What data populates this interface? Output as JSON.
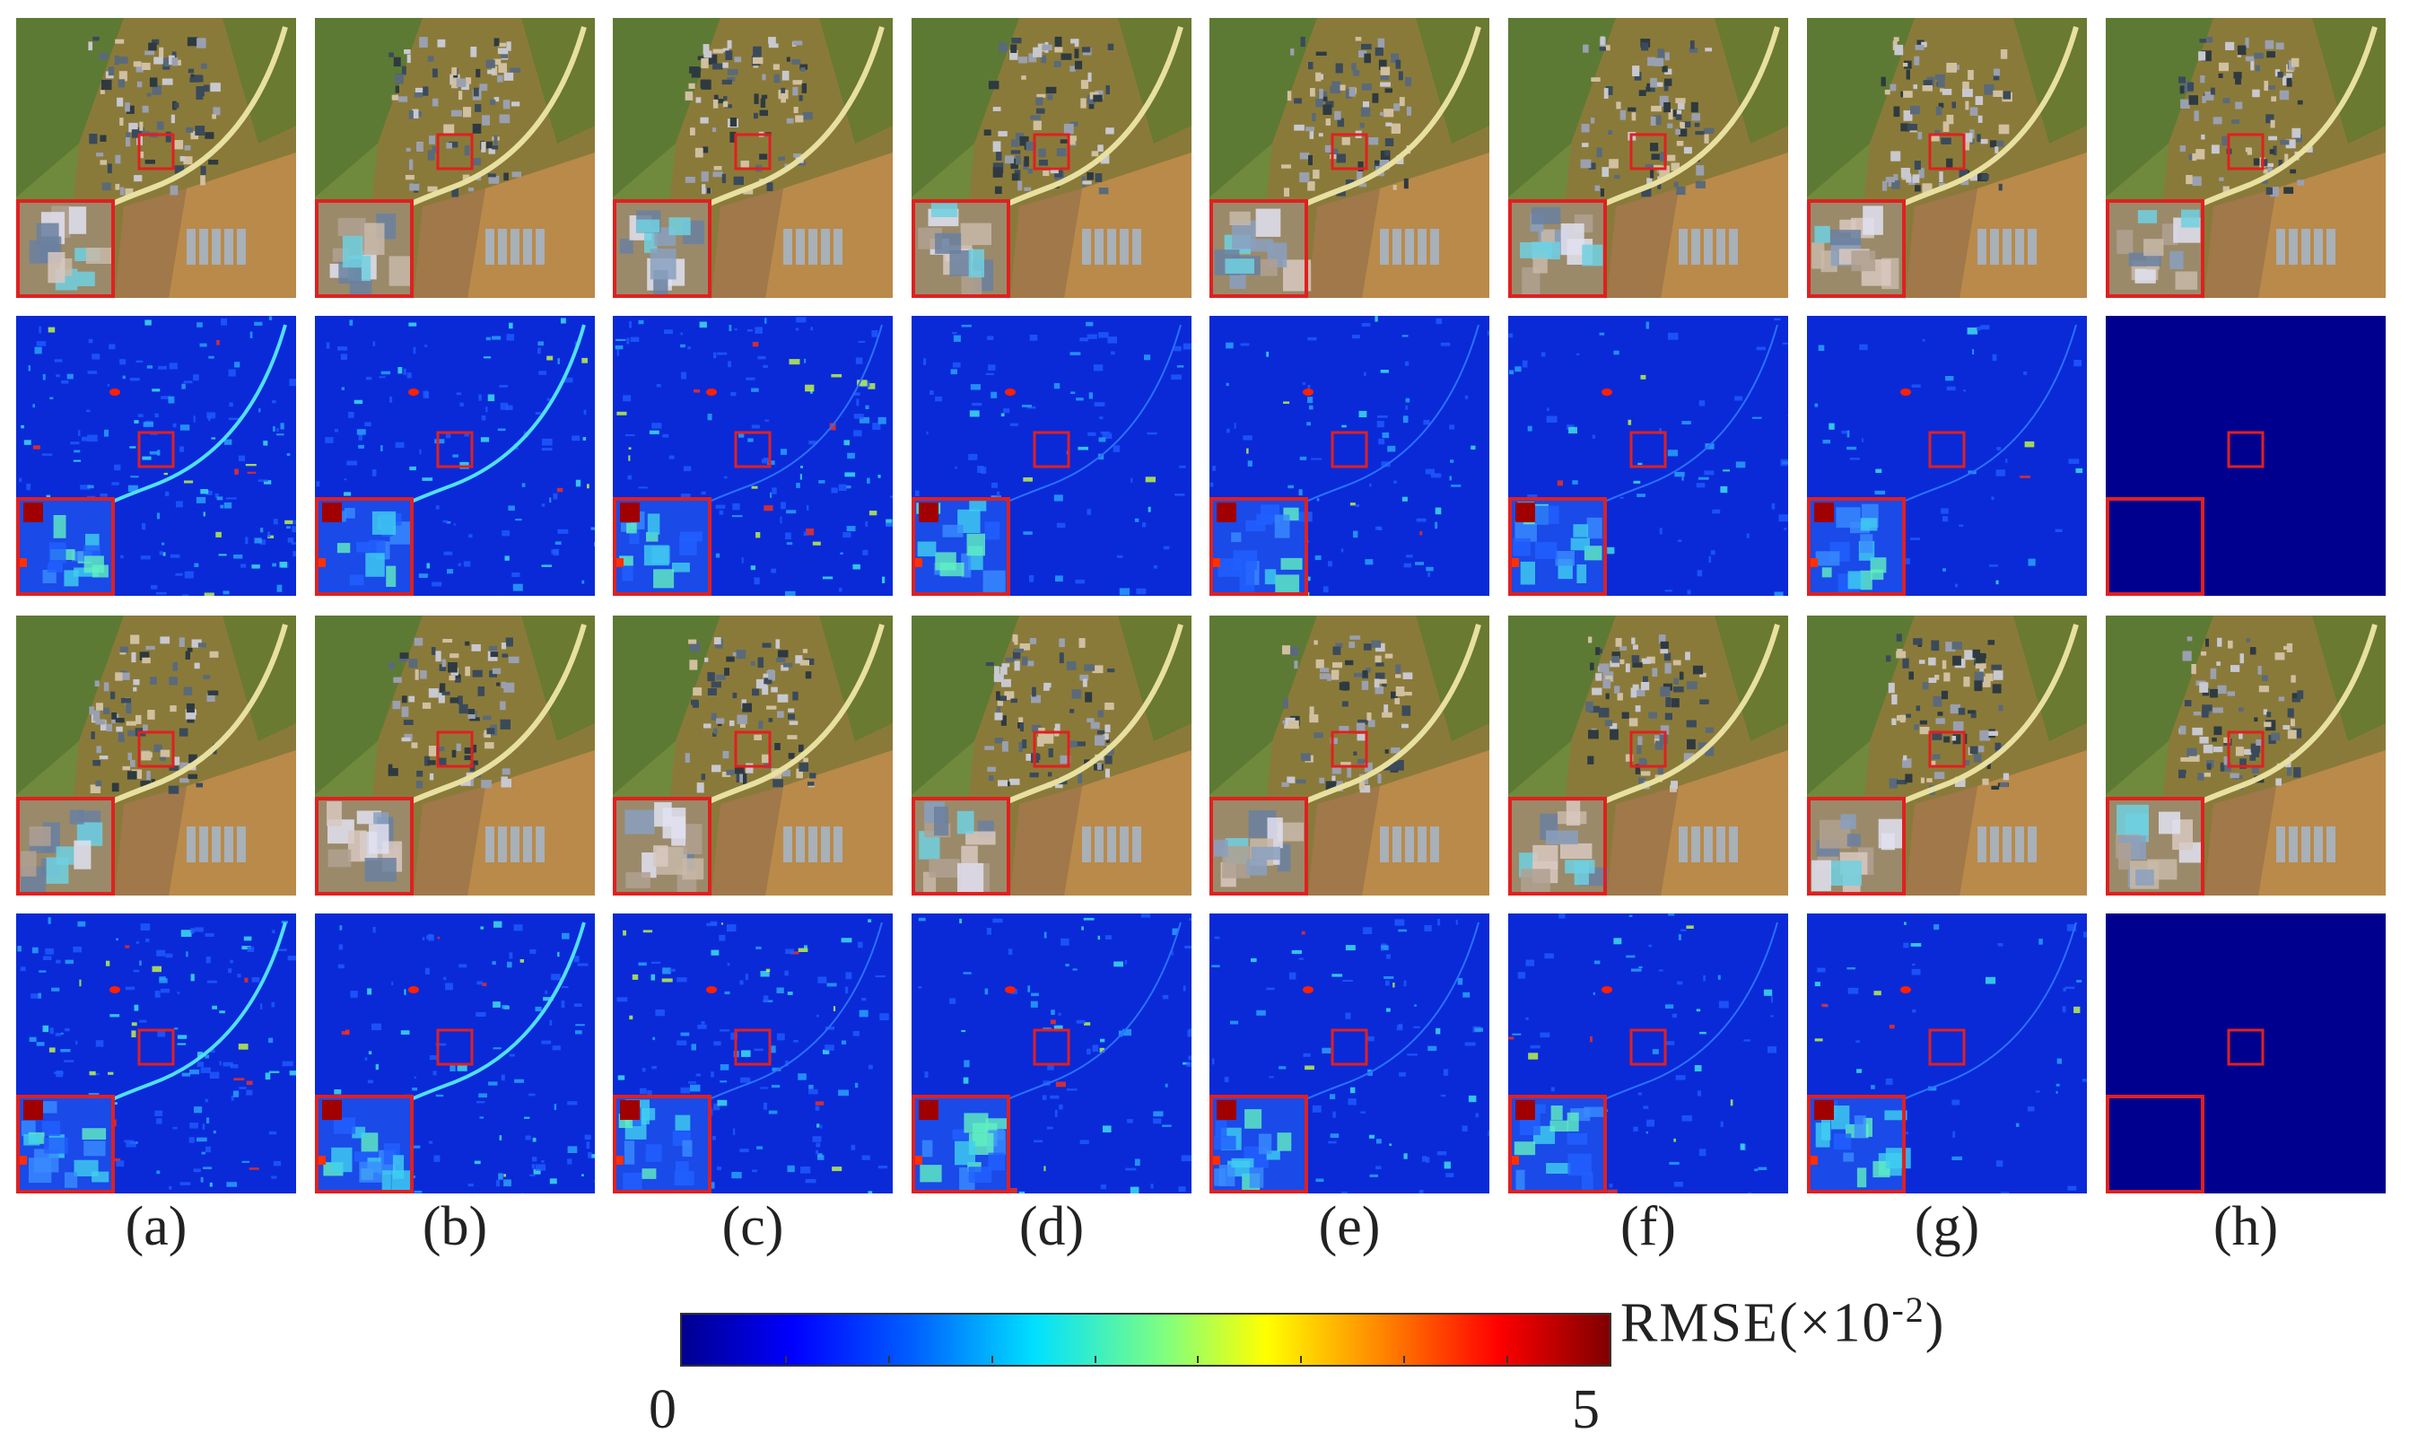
{
  "figure": {
    "columns": [
      "(a)",
      "(b)",
      "(c)",
      "(d)",
      "(e)",
      "(f)",
      "(g)",
      "(h)"
    ],
    "rows": [
      {
        "kind": "fusion",
        "name": "fused-image-row-1"
      },
      {
        "kind": "error",
        "name": "error-map-row-1"
      },
      {
        "kind": "fusion",
        "name": "fused-image-row-2"
      },
      {
        "kind": "error",
        "name": "error-map-row-2"
      }
    ],
    "reference_column": "(h)",
    "highlight_color": "#e02020"
  },
  "colorbar": {
    "label": "RMSE",
    "unit": "(×10",
    "exponent": "-2",
    "close": ")",
    "min": "0",
    "max": "5",
    "colors": [
      "#00008f",
      "#0000ff",
      "#0060ff",
      "#00e0ff",
      "#7fff7f",
      "#ffff00",
      "#ff8000",
      "#ff0000",
      "#800000"
    ]
  }
}
